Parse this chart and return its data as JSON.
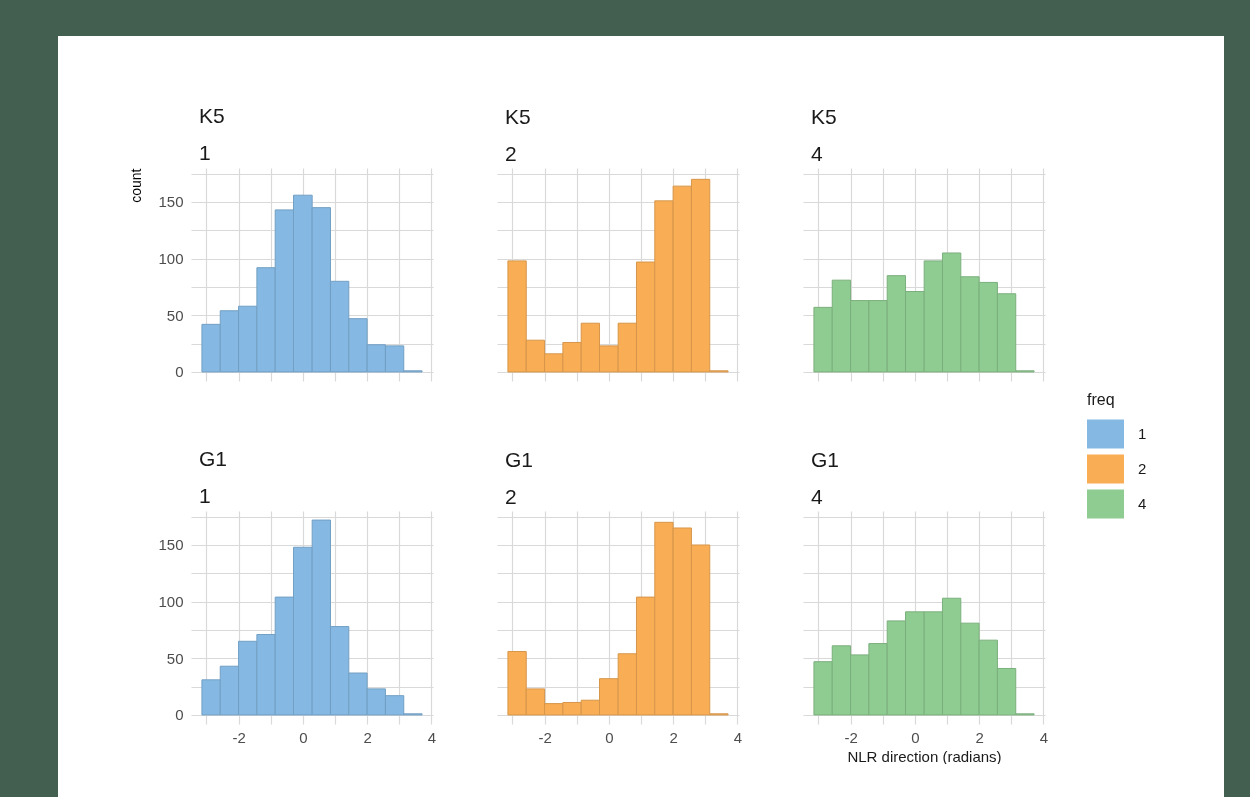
{
  "chart_data": [
    {
      "type": "histogram",
      "title": "K5",
      "subtitle": "1",
      "ylabel": "count",
      "bins": [
        -3.14,
        -2.57,
        -2.0,
        -1.43,
        -0.86,
        -0.29,
        0.29,
        0.86,
        1.43,
        2.0,
        2.57,
        3.14,
        3.71
      ],
      "series": [
        {
          "name": "1",
          "color": "#85b9e3",
          "values": [
            42,
            54,
            58,
            92,
            143,
            156,
            145,
            80,
            47,
            24,
            23,
            1
          ]
        }
      ],
      "xlim": [
        -3.48,
        4.05
      ],
      "ylim": [
        -8,
        180
      ],
      "xticks": [
        {
          "value": -3,
          "label": null
        },
        -2,
        {
          "value": -1,
          "label": null
        },
        0,
        {
          "value": 1,
          "label": null
        },
        2,
        {
          "value": 3,
          "label": null
        },
        4
      ],
      "yticks": [
        0,
        {
          "value": 25,
          "label": null
        },
        50,
        {
          "value": 75,
          "label": null
        },
        100,
        {
          "value": 125,
          "label": null
        },
        150,
        {
          "value": 175,
          "label": null
        }
      ],
      "grid": true,
      "tick_labels": "y",
      "legend": "right",
      "legend_title": "freq"
    },
    {
      "type": "histogram",
      "title": "K5",
      "subtitle": "2",
      "bins": [
        -3.14,
        -2.57,
        -2.0,
        -1.43,
        -0.86,
        -0.29,
        0.29,
        0.86,
        1.43,
        2.0,
        2.57,
        3.14,
        3.71
      ],
      "series": [
        {
          "name": "2",
          "color": "#f9ae56",
          "values": [
            98,
            28,
            16,
            26,
            43,
            23,
            43,
            97,
            151,
            164,
            170,
            1
          ]
        }
      ],
      "xlim": [
        -3.48,
        4.05
      ],
      "ylim": [
        -8,
        180
      ],
      "xticks": [
        {
          "value": -3,
          "label": null
        },
        -2,
        {
          "value": -1,
          "label": null
        },
        0,
        {
          "value": 1,
          "label": null
        },
        2,
        {
          "value": 3,
          "label": null
        },
        4
      ],
      "yticks": [
        0,
        {
          "value": 25,
          "label": null
        },
        50,
        {
          "value": 75,
          "label": null
        },
        100,
        {
          "value": 125,
          "label": null
        },
        150,
        {
          "value": 175,
          "label": null
        }
      ],
      "grid": true,
      "tick_labels": false,
      "legend": "right"
    },
    {
      "type": "histogram",
      "title": "K5",
      "subtitle": "4",
      "bins": [
        -3.14,
        -2.57,
        -2.0,
        -1.43,
        -0.86,
        -0.29,
        0.29,
        0.86,
        1.43,
        2.0,
        2.57,
        3.14,
        3.71
      ],
      "series": [
        {
          "name": "4",
          "color": "#8fcc91",
          "values": [
            57,
            81,
            63,
            63,
            85,
            71,
            98,
            105,
            84,
            79,
            69,
            1
          ]
        }
      ],
      "xlim": [
        -3.48,
        4.05
      ],
      "ylim": [
        -8,
        180
      ],
      "xticks": [
        {
          "value": -3,
          "label": null
        },
        -2,
        {
          "value": -1,
          "label": null
        },
        0,
        {
          "value": 1,
          "label": null
        },
        2,
        {
          "value": 3,
          "label": null
        },
        4
      ],
      "yticks": [
        0,
        {
          "value": 25,
          "label": null
        },
        50,
        {
          "value": 75,
          "label": null
        },
        100,
        {
          "value": 125,
          "label": null
        },
        150,
        {
          "value": 175,
          "label": null
        }
      ],
      "grid": true,
      "tick_labels": false,
      "legend": "right"
    },
    {
      "type": "histogram",
      "title": "G1",
      "subtitle": "1",
      "bins": [
        -3.14,
        -2.57,
        -2.0,
        -1.43,
        -0.86,
        -0.29,
        0.29,
        0.86,
        1.43,
        2.0,
        2.57,
        3.14,
        3.71
      ],
      "series": [
        {
          "color": "#85b9e3",
          "values": [
            31,
            43,
            65,
            71,
            104,
            148,
            172,
            78,
            37,
            23,
            17,
            1
          ]
        }
      ],
      "xlim": [
        -3.48,
        4.05
      ],
      "ylim": [
        -8,
        180
      ],
      "xticks": [
        {
          "value": -3,
          "label": null
        },
        -2,
        {
          "value": -1,
          "label": null
        },
        0,
        {
          "value": 1,
          "label": null
        },
        2,
        {
          "value": 3,
          "label": null
        },
        4
      ],
      "yticks": [
        0,
        {
          "value": 25,
          "label": null
        },
        50,
        {
          "value": 75,
          "label": null
        },
        100,
        {
          "value": 125,
          "label": null
        },
        150,
        {
          "value": 175,
          "label": null
        }
      ],
      "grid": true
    },
    {
      "type": "histogram",
      "title": "G1",
      "subtitle": "2",
      "bins": [
        -3.14,
        -2.57,
        -2.0,
        -1.43,
        -0.86,
        -0.29,
        0.29,
        0.86,
        1.43,
        2.0,
        2.57,
        3.14,
        3.71
      ],
      "series": [
        {
          "color": "#f9ae56",
          "values": [
            56,
            23,
            10,
            11,
            13,
            32,
            54,
            104,
            170,
            165,
            150,
            1
          ]
        }
      ],
      "xlim": [
        -3.48,
        4.05
      ],
      "ylim": [
        -8,
        180
      ],
      "xticks": [
        {
          "value": -3,
          "label": null
        },
        -2,
        {
          "value": -1,
          "label": null
        },
        0,
        {
          "value": 1,
          "label": null
        },
        2,
        {
          "value": 3,
          "label": null
        },
        4
      ],
      "yticks": [
        0,
        {
          "value": 25,
          "label": null
        },
        50,
        {
          "value": 75,
          "label": null
        },
        100,
        {
          "value": 125,
          "label": null
        },
        150,
        {
          "value": 175,
          "label": null
        }
      ],
      "grid": true,
      "tick_labels": "x"
    },
    {
      "type": "histogram",
      "title": "G1",
      "subtitle": "4",
      "xlabel": "NLR direction (radians)",
      "bins": [
        -3.14,
        -2.57,
        -2.0,
        -1.43,
        -0.86,
        -0.29,
        0.29,
        0.86,
        1.43,
        2.0,
        2.57,
        3.14,
        3.71
      ],
      "series": [
        {
          "color": "#8fcc91",
          "values": [
            47,
            61,
            53,
            63,
            83,
            91,
            91,
            103,
            81,
            66,
            41,
            1
          ]
        }
      ],
      "xlim": [
        -3.48,
        4.05
      ],
      "ylim": [
        -8,
        180
      ],
      "xticks": [
        {
          "value": -3,
          "label": null
        },
        -2,
        {
          "value": -1,
          "label": null
        },
        0,
        {
          "value": 1,
          "label": null
        },
        2,
        {
          "value": 3,
          "label": null
        },
        4
      ],
      "yticks": [
        0,
        {
          "value": 25,
          "label": null
        },
        50,
        {
          "value": 75,
          "label": null
        },
        100,
        {
          "value": 125,
          "label": null
        },
        150,
        {
          "value": 175,
          "label": null
        }
      ],
      "grid": true,
      "tick_labels": "x"
    }
  ]
}
